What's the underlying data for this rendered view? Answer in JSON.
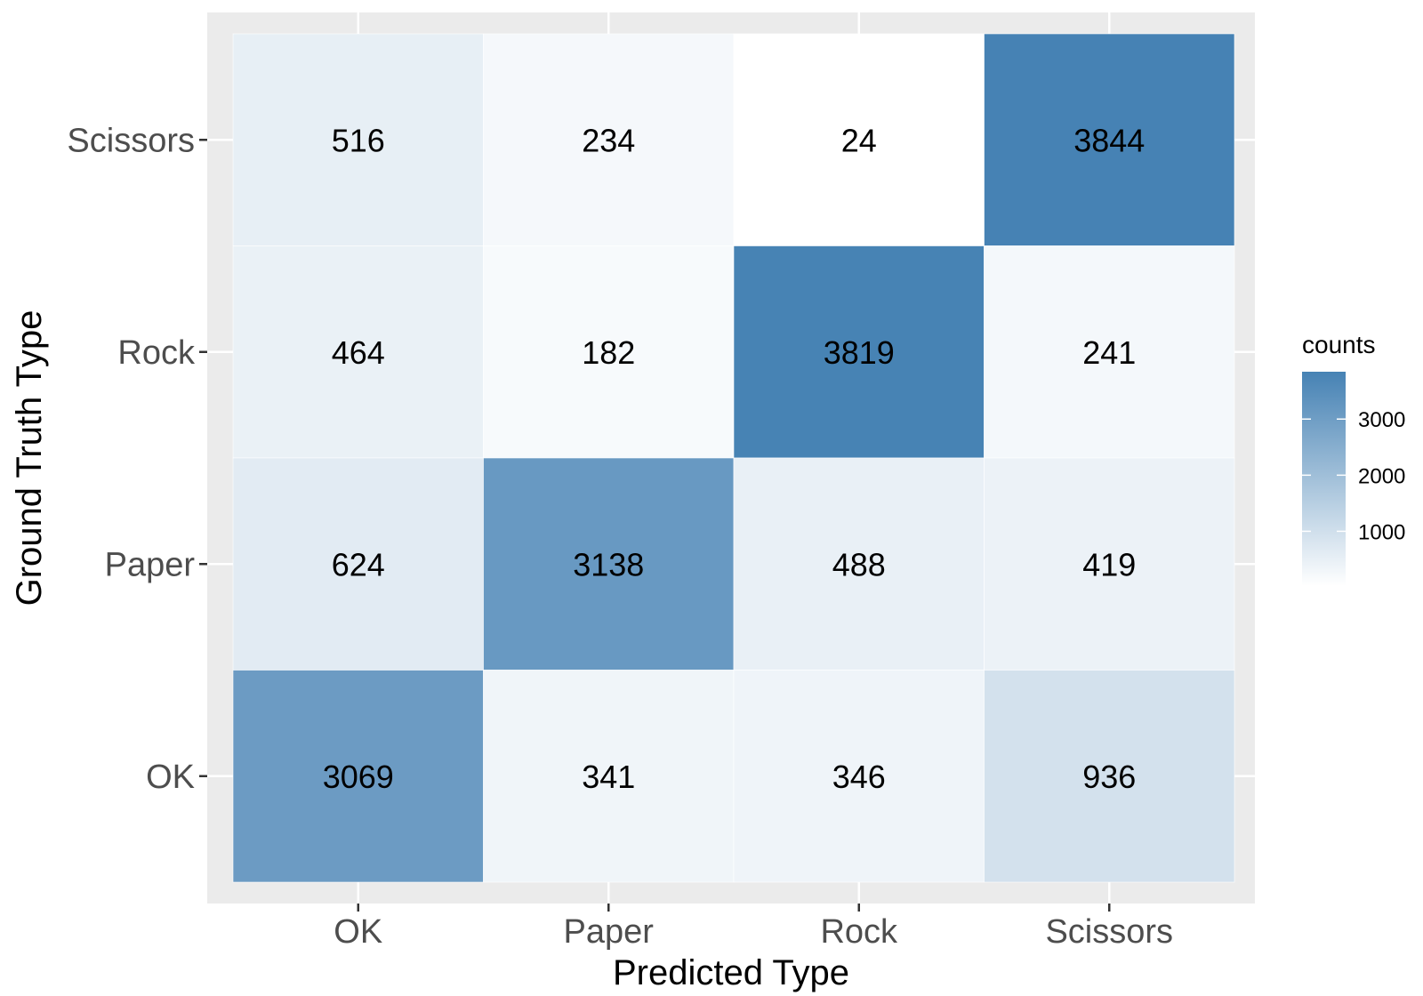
{
  "chart_data": {
    "type": "heatmap",
    "xlabel": "Predicted Type",
    "ylabel": "Ground Truth Type",
    "x_categories": [
      "OK",
      "Paper",
      "Rock",
      "Scissors"
    ],
    "y_categories": [
      "OK",
      "Paper",
      "Rock",
      "Scissors"
    ],
    "cells": [
      {
        "x": "OK",
        "y": "Scissors",
        "value": 516
      },
      {
        "x": "Paper",
        "y": "Scissors",
        "value": 234
      },
      {
        "x": "Rock",
        "y": "Scissors",
        "value": 24
      },
      {
        "x": "Scissors",
        "y": "Scissors",
        "value": 3844
      },
      {
        "x": "OK",
        "y": "Rock",
        "value": 464
      },
      {
        "x": "Paper",
        "y": "Rock",
        "value": 182
      },
      {
        "x": "Rock",
        "y": "Rock",
        "value": 3819
      },
      {
        "x": "Scissors",
        "y": "Rock",
        "value": 241
      },
      {
        "x": "OK",
        "y": "Paper",
        "value": 624
      },
      {
        "x": "Paper",
        "y": "Paper",
        "value": 3138
      },
      {
        "x": "Rock",
        "y": "Paper",
        "value": 488
      },
      {
        "x": "Scissors",
        "y": "Paper",
        "value": 419
      },
      {
        "x": "OK",
        "y": "OK",
        "value": 3069
      },
      {
        "x": "Paper",
        "y": "OK",
        "value": 341
      },
      {
        "x": "Rock",
        "y": "OK",
        "value": 346
      },
      {
        "x": "Scissors",
        "y": "OK",
        "value": 936
      }
    ],
    "legend": {
      "title": "counts",
      "ticks": [
        1000,
        2000,
        3000
      ],
      "tick_labels": [
        "1000",
        "2000",
        "3000"
      ],
      "range": [
        24,
        3844
      ],
      "placement": "right"
    },
    "colors": {
      "low": "#ffffff",
      "high": "#4682b4",
      "panel_background": "#ebebeb",
      "grid": "#ffffff"
    },
    "grid": true
  }
}
